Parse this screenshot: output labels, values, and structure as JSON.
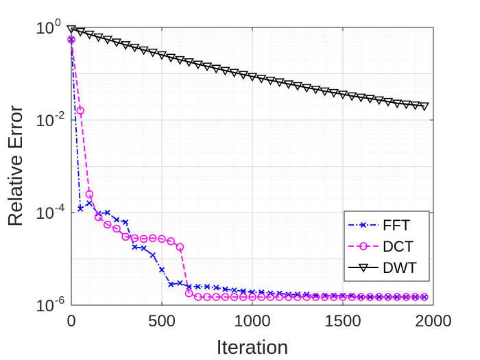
{
  "chart_data": {
    "type": "line",
    "title": "",
    "xlabel": "Iteration",
    "ylabel": "Relative Error",
    "xlim": [
      0,
      2000
    ],
    "ylim": [
      1e-06,
      1
    ],
    "yscale": "log",
    "grid": true,
    "x_ticks": [
      "0",
      "500",
      "1000",
      "1500",
      "2000"
    ],
    "y_ticks": [
      {
        "base": "10",
        "exp": "0",
        "value": 1
      },
      {
        "base": "10",
        "exp": "-2",
        "value": 0.01
      },
      {
        "base": "10",
        "exp": "-4",
        "value": 0.0001
      },
      {
        "base": "10",
        "exp": "-6",
        "value": 1e-06
      }
    ],
    "legend_position": "bottom-right",
    "series": [
      {
        "name": "FFT",
        "color": "#0000ff",
        "line_style": "dash-dot",
        "marker": "x",
        "x": [
          0,
          50,
          100,
          150,
          200,
          250,
          300,
          350,
          400,
          450,
          500,
          550,
          600,
          650,
          700,
          750,
          800,
          850,
          900,
          950,
          1000,
          1050,
          1100,
          1150,
          1200,
          1250,
          1300,
          1350,
          1400,
          1450,
          1500,
          1550,
          1600,
          1650,
          1700,
          1750,
          1800,
          1850,
          1900,
          1950
        ],
        "y": [
          0.55,
          0.00012,
          0.00016,
          9.5e-05,
          0.0001,
          7e-05,
          6.2e-05,
          1.8e-05,
          1.7e-05,
          1.2e-05,
          5.8e-06,
          2.8e-06,
          3e-06,
          2.5e-06,
          2.5e-06,
          2.5e-06,
          2.4e-06,
          2.2e-06,
          2.1e-06,
          2e-06,
          1.9e-06,
          1.9e-06,
          1.8e-06,
          1.8e-06,
          1.7e-06,
          1.7e-06,
          1.7e-06,
          1.6e-06,
          1.6e-06,
          1.6e-06,
          1.6e-06,
          1.6e-06,
          1.5e-06,
          1.5e-06,
          1.5e-06,
          1.5e-06,
          1.5e-06,
          1.5e-06,
          1.5e-06,
          1.5e-06
        ]
      },
      {
        "name": "DCT",
        "color": "#ff00ff",
        "line_style": "dashed",
        "marker": "circle",
        "x": [
          0,
          50,
          100,
          150,
          200,
          250,
          300,
          350,
          400,
          450,
          500,
          550,
          600,
          650,
          700,
          750,
          800,
          850,
          900,
          950,
          1000,
          1050,
          1100,
          1150,
          1200,
          1250,
          1300,
          1350,
          1400,
          1450,
          1500,
          1550,
          1600,
          1650,
          1700,
          1750,
          1800,
          1850,
          1900,
          1950
        ],
        "y": [
          0.55,
          0.016,
          0.00025,
          8e-05,
          5.5e-05,
          4.5e-05,
          3e-05,
          2.8e-05,
          2.7e-05,
          2.8e-05,
          2.7e-05,
          2.4e-05,
          1.8e-05,
          1.8e-06,
          1.5e-06,
          1.5e-06,
          1.5e-06,
          1.5e-06,
          1.5e-06,
          1.5e-06,
          1.5e-06,
          1.5e-06,
          1.5e-06,
          1.5e-06,
          1.5e-06,
          1.5e-06,
          1.5e-06,
          1.5e-06,
          1.5e-06,
          1.5e-06,
          1.5e-06,
          1.5e-06,
          1.5e-06,
          1.5e-06,
          1.5e-06,
          1.5e-06,
          1.5e-06,
          1.5e-06,
          1.5e-06,
          1.5e-06
        ]
      },
      {
        "name": "DWT",
        "color": "#000000",
        "line_style": "solid",
        "marker": "triangle-down",
        "x": [
          0,
          50,
          100,
          150,
          200,
          250,
          300,
          350,
          400,
          450,
          500,
          550,
          600,
          650,
          700,
          750,
          800,
          850,
          900,
          950,
          1000,
          1050,
          1100,
          1150,
          1200,
          1250,
          1300,
          1350,
          1400,
          1450,
          1500,
          1550,
          1600,
          1650,
          1700,
          1750,
          1800,
          1850,
          1900,
          1950
        ],
        "y": [
          0.93,
          0.81,
          0.71,
          0.62,
          0.55,
          0.48,
          0.42,
          0.37,
          0.325,
          0.29,
          0.255,
          0.225,
          0.2,
          0.18,
          0.16,
          0.145,
          0.13,
          0.117,
          0.106,
          0.096,
          0.087,
          0.079,
          0.072,
          0.066,
          0.06,
          0.055,
          0.05,
          0.046,
          0.042,
          0.039,
          0.036,
          0.033,
          0.031,
          0.029,
          0.027,
          0.025,
          0.023,
          0.022,
          0.021,
          0.02
        ]
      }
    ]
  }
}
